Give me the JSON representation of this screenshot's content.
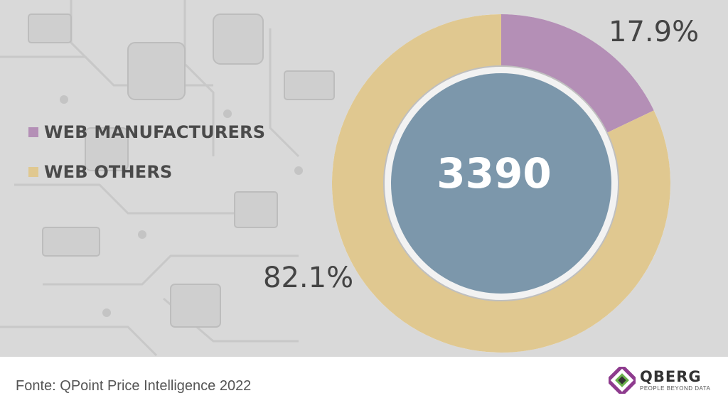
{
  "chart_data": {
    "type": "pie",
    "variant": "donut",
    "categories": [
      "WEB MANUFACTURERS",
      "WEB OTHERS"
    ],
    "values": [
      17.9,
      82.1
    ],
    "value_labels": [
      "17.9%",
      "82.1%"
    ],
    "center_value": "3390",
    "colors": [
      "#b48fb6",
      "#e0c890"
    ],
    "center_color": "#7c97ab",
    "legend_position": "left"
  },
  "source": "Fonte: QPoint Price Intelligence 2022",
  "logo": {
    "name": "QBERG",
    "tagline": "PEOPLE BEYOND DATA",
    "colors": [
      "#8e3b8e",
      "#6ab04c",
      "#333333"
    ]
  }
}
